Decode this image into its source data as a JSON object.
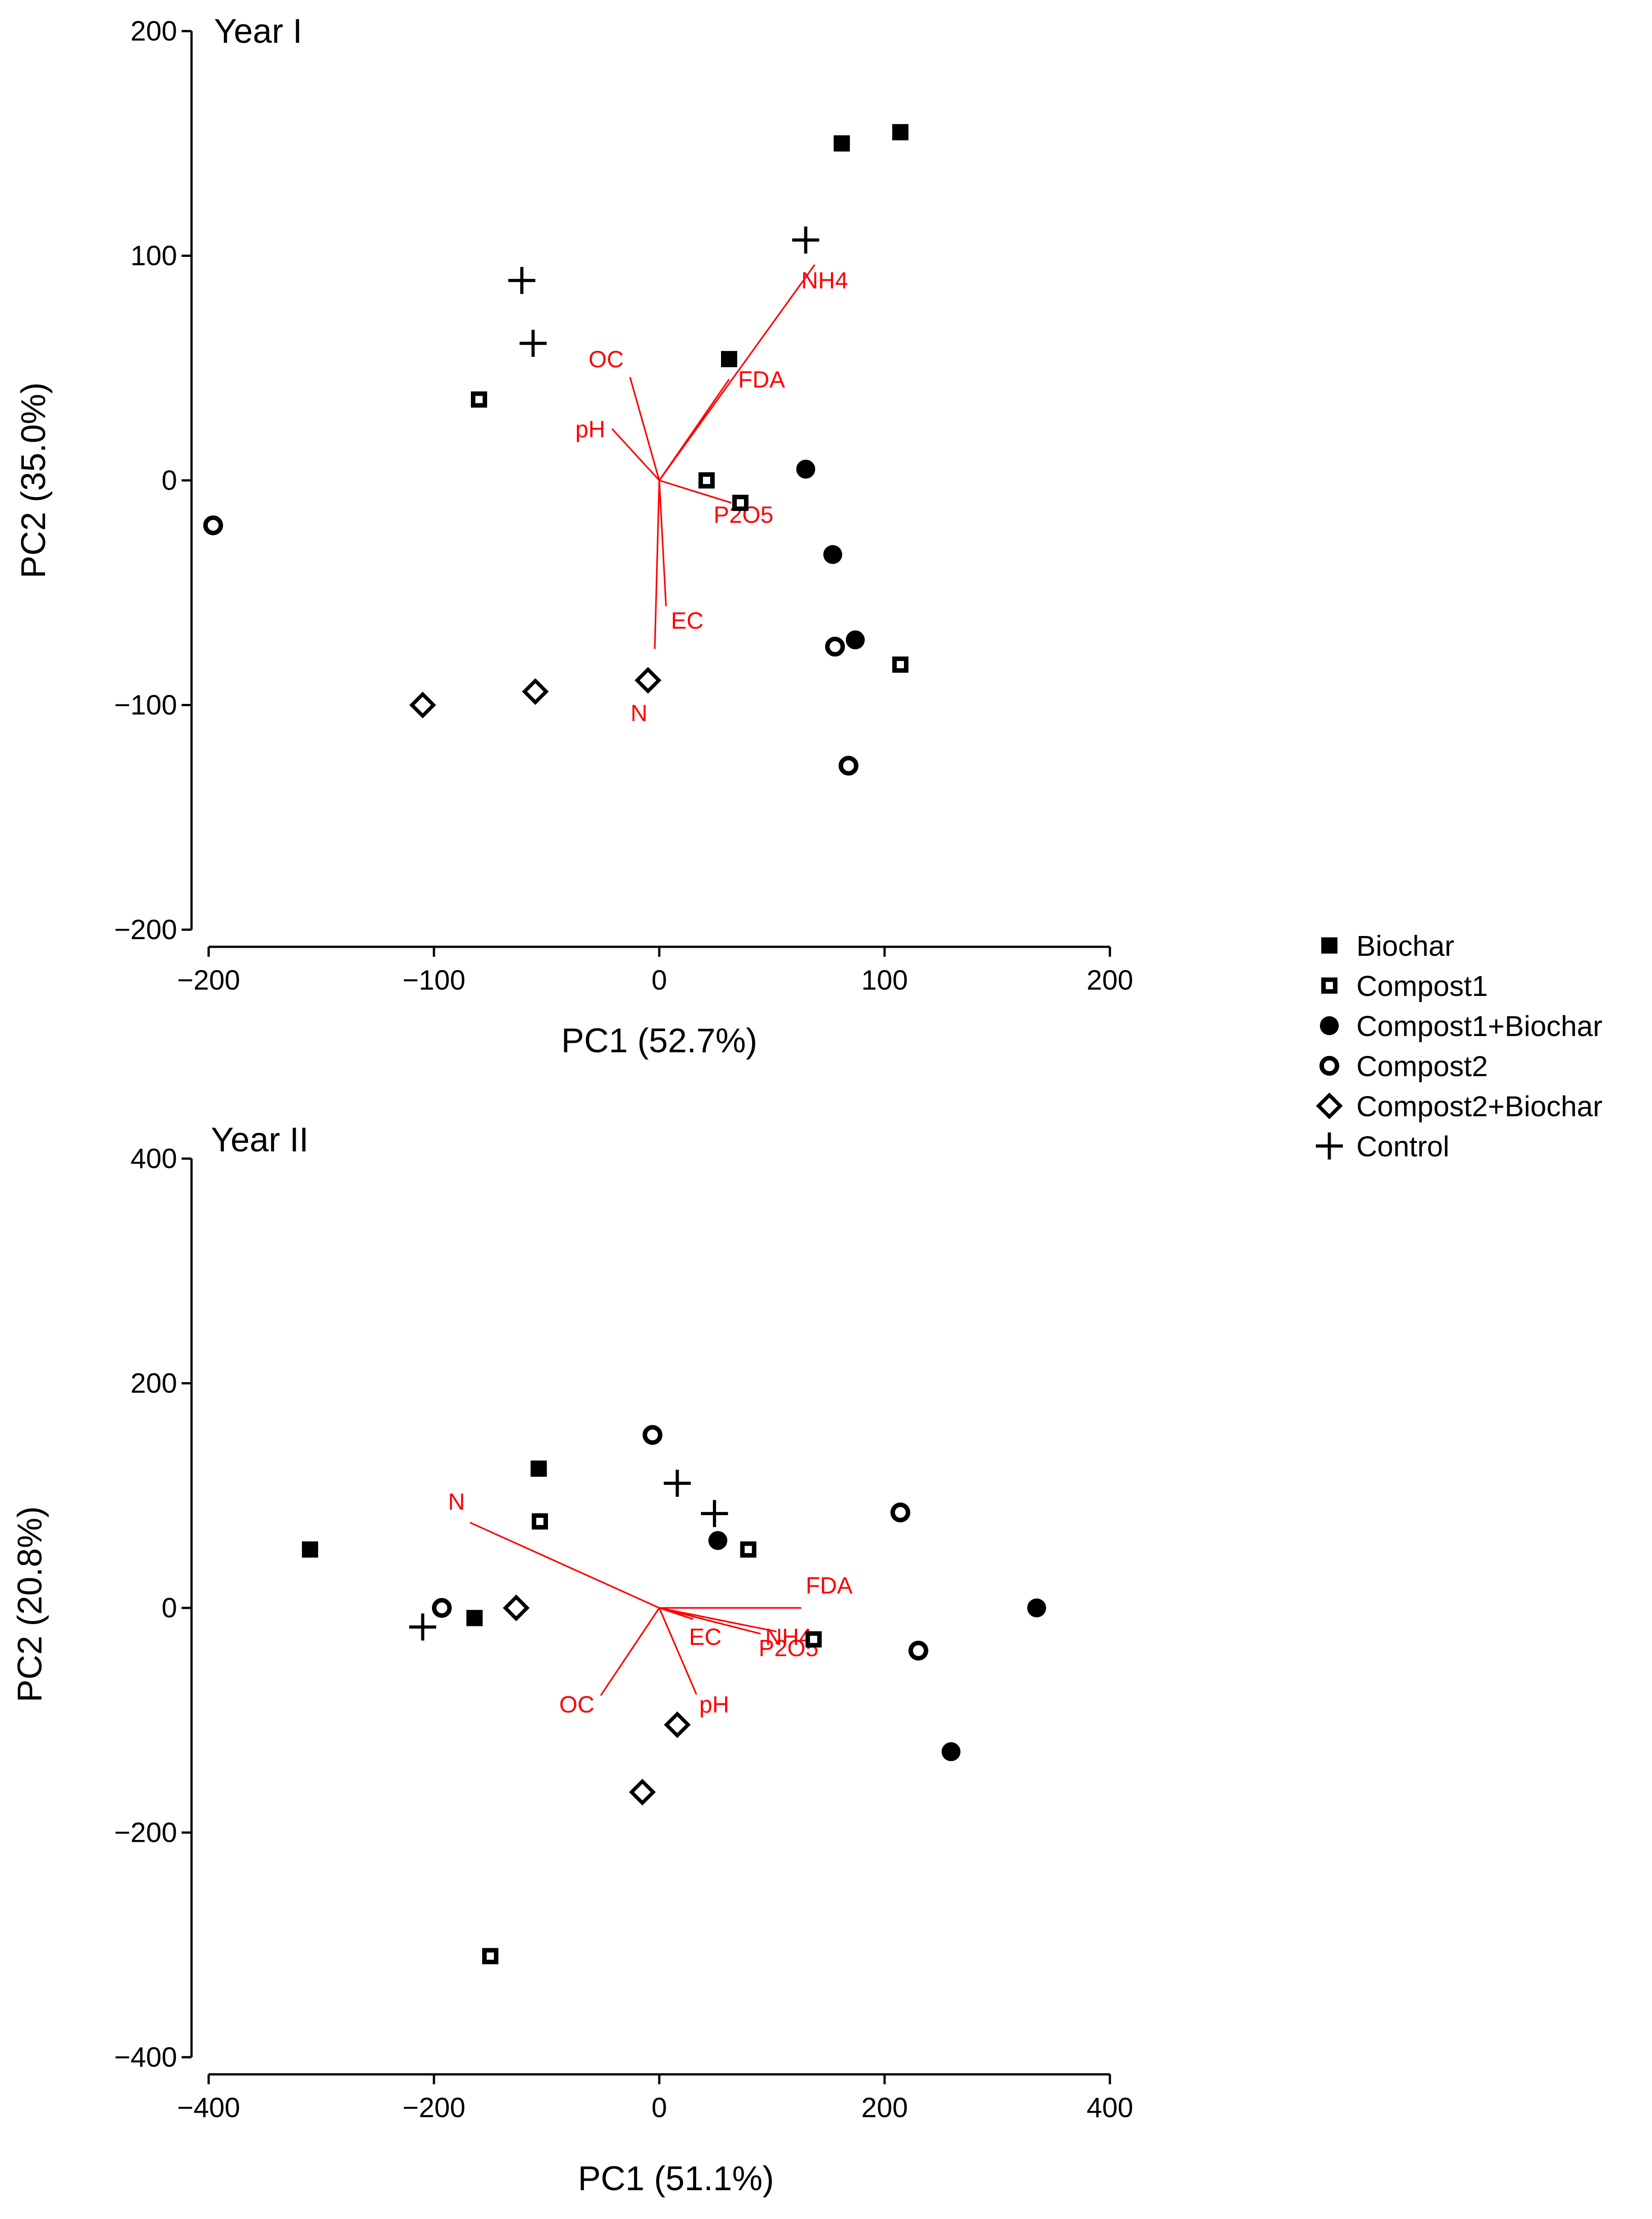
{
  "legend": [
    {
      "key": "biochar",
      "label": "Biochar",
      "marker": "filled-square"
    },
    {
      "key": "compost1",
      "label": "Compost1",
      "marker": "open-square"
    },
    {
      "key": "compost1_biochar",
      "label": "Compost1+Biochar",
      "marker": "filled-circle"
    },
    {
      "key": "compost2",
      "label": "Compost2",
      "marker": "open-circle"
    },
    {
      "key": "compost2_biochar",
      "label": "Compost2+Biochar",
      "marker": "open-diamond"
    },
    {
      "key": "control",
      "label": "Control",
      "marker": "plus"
    }
  ],
  "colors": {
    "loading": "#ff0000",
    "points": "#000000"
  },
  "chart_data": [
    {
      "type": "scatter",
      "title": "Year I",
      "xlabel": "PC1 (52.7%)",
      "ylabel": "PC2 (35.0%)",
      "xlim": [
        -200,
        200
      ],
      "ylim": [
        -200,
        200
      ],
      "xticks": [
        -200,
        -100,
        0,
        100,
        200
      ],
      "yticks": [
        -200,
        -100,
        0,
        100,
        200
      ],
      "xtick_labels": [
        "−200",
        "−100",
        "0",
        "100",
        "200"
      ],
      "ytick_labels": [
        "−200",
        "−100",
        "0",
        "100",
        "200"
      ],
      "series": [
        {
          "name": "Biochar",
          "points": [
            [
              81,
              150
            ],
            [
              107,
              155
            ],
            [
              31,
              54
            ]
          ]
        },
        {
          "name": "Compost1",
          "points": [
            [
              -80,
              36
            ],
            [
              21,
              0
            ],
            [
              36,
              -10
            ],
            [
              107,
              -82
            ]
          ]
        },
        {
          "name": "Compost1+Biochar",
          "points": [
            [
              65,
              5
            ],
            [
              77,
              -33
            ],
            [
              87,
              -71
            ]
          ]
        },
        {
          "name": "Compost2",
          "points": [
            [
              -198,
              -20
            ],
            [
              78,
              -74
            ],
            [
              84,
              -127
            ]
          ]
        },
        {
          "name": "Compost2+Biochar",
          "points": [
            [
              -105,
              -100
            ],
            [
              -55,
              -94
            ],
            [
              -5,
              -89
            ]
          ]
        },
        {
          "name": "Control",
          "points": [
            [
              -61,
              89
            ],
            [
              -56,
              61
            ],
            [
              65,
              107
            ]
          ]
        }
      ],
      "loadings": [
        {
          "label": "NH4",
          "end": [
            69,
            96
          ]
        },
        {
          "label": "OC",
          "end": [
            -13,
            46
          ]
        },
        {
          "label": "FDA",
          "end": [
            31,
            45
          ]
        },
        {
          "label": "pH",
          "end": [
            -21,
            23
          ]
        },
        {
          "label": "P2O5",
          "end": [
            32,
            -10
          ]
        },
        {
          "label": "EC",
          "end": [
            3,
            -56
          ]
        },
        {
          "label": "N",
          "end": [
            -2,
            -75
          ]
        }
      ]
    },
    {
      "type": "scatter",
      "title": "Year II",
      "xlabel": "PC1 (51.1%)",
      "ylabel": "PC2 (20.8%)",
      "xlim": [
        -400,
        400
      ],
      "ylim": [
        -400,
        400
      ],
      "xticks": [
        -400,
        -200,
        0,
        200,
        400
      ],
      "yticks": [
        -400,
        -200,
        0,
        200,
        400
      ],
      "xtick_labels": [
        "−400",
        "−200",
        "0",
        "200",
        "400"
      ],
      "ytick_labels": [
        "−400",
        "−200",
        "0",
        "200",
        "400"
      ],
      "series": [
        {
          "name": "Biochar",
          "points": [
            [
              -310,
              52
            ],
            [
              -107,
              124
            ],
            [
              -164,
              -9
            ]
          ]
        },
        {
          "name": "Compost1",
          "points": [
            [
              -106,
              77
            ],
            [
              79,
              52
            ],
            [
              137,
              -28
            ],
            [
              -150,
              -310
            ]
          ]
        },
        {
          "name": "Compost1+Biochar",
          "points": [
            [
              52,
              60
            ],
            [
              335,
              0
            ],
            [
              259,
              -128
            ]
          ]
        },
        {
          "name": "Compost2",
          "points": [
            [
              -6,
              154
            ],
            [
              214,
              85
            ],
            [
              230,
              -38
            ],
            [
              -193,
              0
            ]
          ]
        },
        {
          "name": "Compost2+Biochar",
          "points": [
            [
              -127,
              0
            ],
            [
              16,
              -104
            ],
            [
              -15,
              -164
            ]
          ]
        },
        {
          "name": "Control",
          "points": [
            [
              16,
              111
            ],
            [
              49,
              84
            ],
            [
              -210,
              -17
            ]
          ]
        }
      ],
      "loadings": [
        {
          "label": "N",
          "end": [
            -168,
            76
          ]
        },
        {
          "label": "FDA",
          "end": [
            126,
            0
          ]
        },
        {
          "label": "NH4",
          "end": [
            104,
            -21
          ]
        },
        {
          "label": "P2O5",
          "end": [
            90,
            -23
          ]
        },
        {
          "label": "EC",
          "end": [
            30,
            -10
          ]
        },
        {
          "label": "OC",
          "end": [
            -52,
            -78
          ]
        },
        {
          "label": "pH",
          "end": [
            33,
            -77
          ]
        }
      ]
    }
  ]
}
